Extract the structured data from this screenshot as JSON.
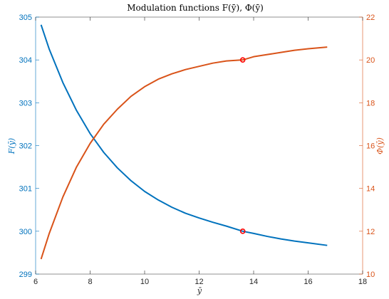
{
  "chart_data": {
    "type": "line",
    "title": "Modulation functions F(ȳ), Φ(ȳ)",
    "xlabel": "ȳ",
    "ylabel_left": "F(ȳ)",
    "ylabel_right": "Φ(ȳ)",
    "xlim": [
      6,
      18
    ],
    "ylim_left": [
      299,
      305
    ],
    "ylim_right": [
      10,
      22
    ],
    "xticks": [
      6,
      8,
      10,
      12,
      14,
      16,
      18
    ],
    "yticks_left": [
      299,
      300,
      301,
      302,
      303,
      304,
      305
    ],
    "yticks_right": [
      10,
      12,
      14,
      16,
      18,
      20,
      22
    ],
    "grid": false,
    "series": [
      {
        "axis": "left",
        "color": "#0072BD",
        "x": [
          6.2,
          6.5,
          7.0,
          7.5,
          8.0,
          8.5,
          9.0,
          9.5,
          10.0,
          10.5,
          11.0,
          11.5,
          12.0,
          12.5,
          13.0,
          13.6,
          14.0,
          14.5,
          15.0,
          15.5,
          16.0,
          16.7
        ],
        "y": [
          304.82,
          304.25,
          303.47,
          302.82,
          302.28,
          301.84,
          301.48,
          301.18,
          300.93,
          300.73,
          300.56,
          300.42,
          300.31,
          300.21,
          300.12,
          300.0,
          299.95,
          299.88,
          299.82,
          299.77,
          299.73,
          299.67
        ]
      },
      {
        "axis": "right",
        "color": "#D95319",
        "x": [
          6.2,
          6.5,
          7.0,
          7.5,
          8.0,
          8.5,
          9.0,
          9.5,
          10.0,
          10.5,
          11.0,
          11.5,
          12.0,
          12.5,
          13.0,
          13.6,
          14.0,
          14.5,
          15.0,
          15.5,
          16.0,
          16.7
        ],
        "y": [
          10.7,
          11.9,
          13.6,
          15.0,
          16.1,
          17.0,
          17.7,
          18.3,
          18.75,
          19.1,
          19.35,
          19.55,
          19.7,
          19.85,
          19.95,
          20.0,
          20.15,
          20.25,
          20.35,
          20.45,
          20.52,
          20.6
        ]
      }
    ],
    "markers": [
      {
        "axis": "left",
        "x": 13.6,
        "y": 300.0,
        "color": "#ff0000"
      },
      {
        "axis": "right",
        "x": 13.6,
        "y": 20.0,
        "color": "#ff0000"
      }
    ]
  }
}
